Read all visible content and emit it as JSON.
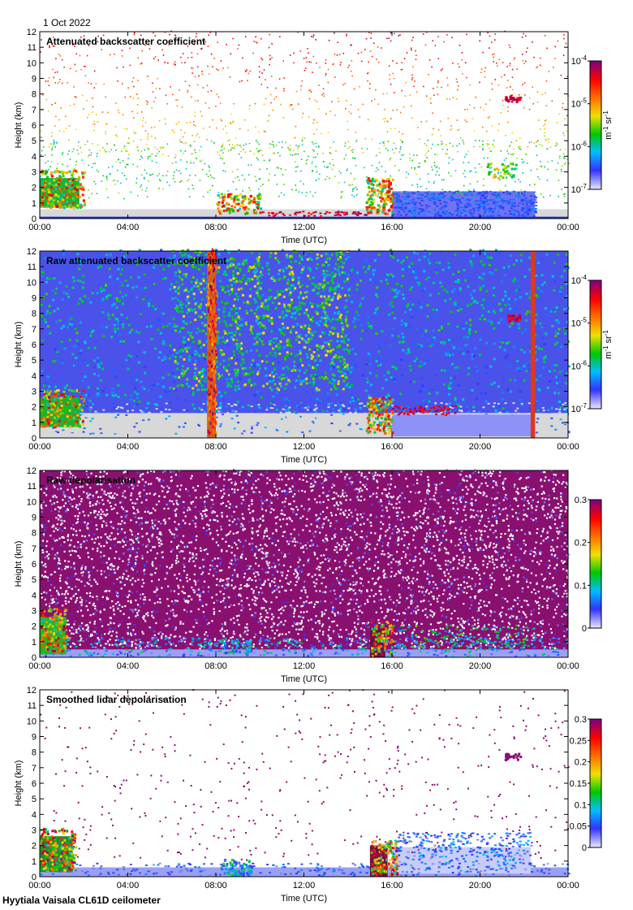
{
  "figure": {
    "date": "1 Oct 2022",
    "footer": "Hyytiala Vaisala CL61D ceilometer"
  },
  "colors": {
    "plot_background": "#ffffff",
    "frame": "#000000",
    "cmap": [
      "#e0e0ff",
      "#3333ff",
      "#00c0ff",
      "#00c800",
      "#f0e000",
      "#ff7000",
      "#ff0000",
      "#800080"
    ],
    "low_signal_gray": "#d8d8d8",
    "depol_purple": "#8a1070"
  },
  "chart_data": [
    {
      "type": "heatmap",
      "title": "Attenuated backscatter coefficient",
      "xlabel": "Time (UTC)",
      "ylabel": "Height (km)",
      "xlim": [
        0,
        24
      ],
      "ylim": [
        0,
        12
      ],
      "x_ticks": [
        "00:00",
        "04:00",
        "08:00",
        "12:00",
        "16:00",
        "20:00",
        "00:00"
      ],
      "y_ticks": [
        "0",
        "1",
        "2",
        "3",
        "4",
        "5",
        "6",
        "7",
        "8",
        "9",
        "10",
        "11",
        "12"
      ],
      "colorbar": {
        "scale": "log",
        "range": [
          1e-07,
          0.0001
        ],
        "units": "m-1 sr-1",
        "ticks": [
          {
            "base": "10",
            "exp": "-4"
          },
          {
            "base": "10",
            "exp": "-5"
          },
          {
            "base": "10",
            "exp": "-6"
          },
          {
            "base": "10",
            "exp": "-7"
          }
        ]
      },
      "features": [
        {
          "name": "boundary layer aerosol",
          "t_start": 0,
          "t_end": 24,
          "h_top": 0.3
        },
        {
          "name": "morning low cloud",
          "t_start": 0,
          "t_end": 2.0,
          "h_base": 0.6,
          "h_top": 3.0
        },
        {
          "name": "cloud band",
          "t_start": 8.0,
          "t_end": 10.0,
          "h_base": 0.2,
          "h_top": 1.5
        },
        {
          "name": "afternoon cloud",
          "t_start": 14.8,
          "t_end": 16.0,
          "h_base": 0.2,
          "h_top": 2.5
        },
        {
          "name": "evening aerosol layer",
          "t_start": 16.0,
          "t_end": 22.5,
          "h_base": 0.2,
          "h_top": 2.0
        },
        {
          "name": "elevated thin cloud",
          "t_start": 21.0,
          "t_end": 21.9,
          "h_base": 7.4,
          "h_top": 7.8
        }
      ]
    },
    {
      "type": "heatmap",
      "title": "Raw attenuated backscatter coefficient",
      "xlabel": "Time (UTC)",
      "ylabel": "Height (km)",
      "xlim": [
        0,
        24
      ],
      "ylim": [
        0,
        12
      ],
      "x_ticks": [
        "00:00",
        "04:00",
        "08:00",
        "12:00",
        "16:00",
        "20:00",
        "00:00"
      ],
      "y_ticks": [
        "0",
        "1",
        "2",
        "3",
        "4",
        "5",
        "6",
        "7",
        "8",
        "9",
        "10",
        "11",
        "12"
      ],
      "colorbar": {
        "scale": "log",
        "range": [
          1e-07,
          0.0001
        ],
        "units": "m-1 sr-1",
        "ticks": [
          {
            "base": "10",
            "exp": "-4"
          },
          {
            "base": "10",
            "exp": "-5"
          },
          {
            "base": "10",
            "exp": "-6"
          },
          {
            "base": "10",
            "exp": "-7"
          }
        ]
      },
      "features": [
        {
          "name": "background noise",
          "t_start": 0,
          "t_end": 24,
          "h_base": 0,
          "h_top": 12
        },
        {
          "name": "solar noise column",
          "t_start": 7.6,
          "t_end": 8.0,
          "h_base": 0,
          "h_top": 12
        },
        {
          "name": "solar noise column",
          "t_start": 22.3,
          "t_end": 22.5,
          "h_base": 0,
          "h_top": 12
        },
        {
          "name": "morning low cloud",
          "t_start": 0,
          "t_end": 2.0,
          "h_base": 0.6,
          "h_top": 3.0
        },
        {
          "name": "afternoon cloud",
          "t_start": 14.8,
          "t_end": 16.0,
          "h_base": 0.2,
          "h_top": 2.5
        }
      ]
    },
    {
      "type": "heatmap",
      "title": "Raw depolarisation",
      "xlabel": "Time (UTC)",
      "ylabel": "Height (km)",
      "xlim": [
        0,
        24
      ],
      "ylim": [
        0,
        12
      ],
      "x_ticks": [
        "00:00",
        "04:00",
        "08:00",
        "12:00",
        "16:00",
        "20:00",
        "00:00"
      ],
      "y_ticks": [
        "0",
        "1",
        "2",
        "3",
        "4",
        "5",
        "6",
        "7",
        "8",
        "9",
        "10",
        "11",
        "12"
      ],
      "colorbar": {
        "scale": "linear",
        "range": [
          0,
          0.3
        ],
        "units": "",
        "ticks": [
          "0.3",
          "0.2",
          "0.1",
          "0"
        ]
      },
      "features": [
        {
          "name": "noise",
          "t_start": 0,
          "t_end": 24,
          "h_base": 0.5,
          "h_top": 12
        },
        {
          "name": "boundary layer",
          "t_start": 0,
          "t_end": 24,
          "h_top": 0.5
        },
        {
          "name": "morning low cloud",
          "t_start": 0,
          "t_end": 1.2,
          "h_base": 0.2,
          "h_top": 3.0
        },
        {
          "name": "afternoon cloud",
          "t_start": 15.0,
          "t_end": 16.0,
          "h_base": 0,
          "h_top": 2.2
        }
      ]
    },
    {
      "type": "heatmap",
      "title": "Smoothed lidar depolarisation",
      "xlabel": "Time (UTC)",
      "ylabel": "Height (km)",
      "xlim": [
        0,
        24
      ],
      "ylim": [
        0,
        12
      ],
      "x_ticks": [
        "00:00",
        "04:00",
        "08:00",
        "12:00",
        "16:00",
        "20:00",
        "00:00"
      ],
      "y_ticks": [
        "0",
        "1",
        "2",
        "3",
        "4",
        "5",
        "6",
        "7",
        "8",
        "9",
        "10",
        "11",
        "12"
      ],
      "colorbar": {
        "scale": "linear",
        "range": [
          0,
          0.3
        ],
        "units": "",
        "ticks": [
          "0.3",
          "0.25",
          "0.2",
          "0.15",
          "0.1",
          "0.05",
          "0"
        ]
      },
      "features": [
        {
          "name": "boundary layer",
          "t_start": 0,
          "t_end": 24,
          "h_top": 0.6
        },
        {
          "name": "morning low cloud",
          "t_start": 0,
          "t_end": 1.5,
          "h_base": 0.3,
          "h_top": 3.0
        },
        {
          "name": "afternoon cloud",
          "t_start": 15.0,
          "t_end": 16.0,
          "h_base": 0,
          "h_top": 2.2
        },
        {
          "name": "evening aerosol layer",
          "t_start": 16.0,
          "t_end": 22.5,
          "h_base": 0.2,
          "h_top": 2.0
        },
        {
          "name": "elevated thin cloud",
          "t_start": 21.0,
          "t_end": 21.9,
          "h_base": 7.4,
          "h_top": 7.8
        }
      ]
    }
  ]
}
